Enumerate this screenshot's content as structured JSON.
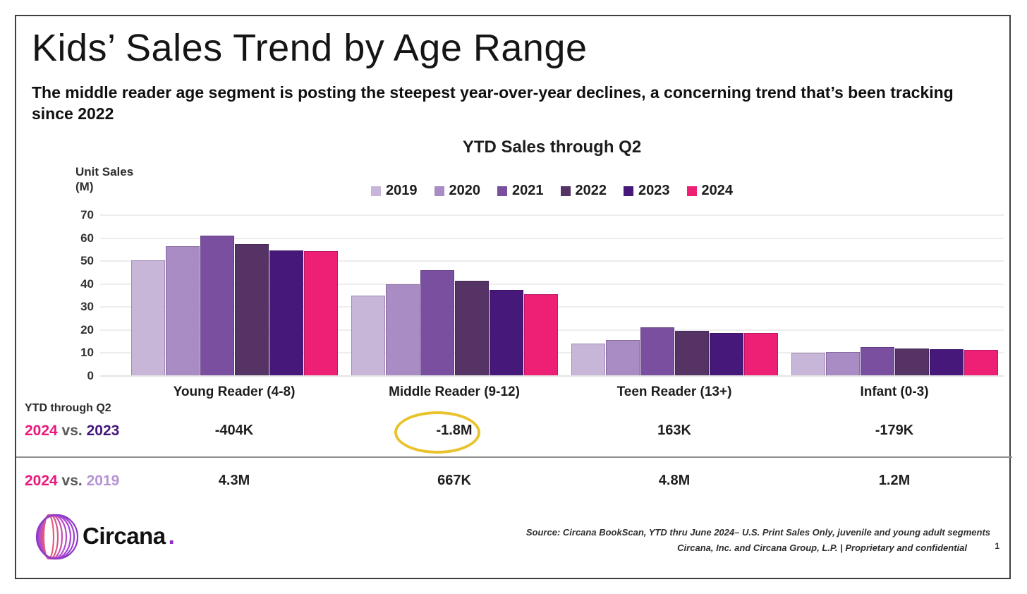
{
  "slide": {
    "title": "Kids’ Sales Trend by Age Range",
    "subtitle": "The middle reader age segment is posting the steepest year-over-year declines, a concerning trend that’s been tracking since 2022",
    "page_number": "1"
  },
  "chart_data": {
    "type": "bar",
    "title": "YTD Sales through Q2",
    "y_axis_label_line1": "Unit Sales",
    "y_axis_label_line2": "(M)",
    "ylim": [
      0,
      70
    ],
    "yticks": [
      70,
      60,
      50,
      40,
      30,
      20,
      10,
      0
    ],
    "grid": true,
    "legend_position": "top-center",
    "categories": [
      "Young Reader (4-8)",
      "Middle Reader (9-12)",
      "Teen Reader (13+)",
      "Infant (0-3)"
    ],
    "series": [
      {
        "name": "2019",
        "color": "#c8b6d8",
        "values": [
          49.9,
          34.6,
          13.7,
          9.9
        ]
      },
      {
        "name": "2020",
        "color": "#a98cc4",
        "values": [
          56.3,
          39.5,
          15.5,
          10.1
        ]
      },
      {
        "name": "2021",
        "color": "#7a4fa0",
        "values": [
          60.9,
          45.8,
          20.8,
          12.2
        ]
      },
      {
        "name": "2022",
        "color": "#553365",
        "values": [
          57.0,
          41.0,
          19.5,
          11.8
        ]
      },
      {
        "name": "2023",
        "color": "#45187a",
        "values": [
          54.5,
          37.1,
          18.3,
          11.3
        ]
      },
      {
        "name": "2024",
        "color": "#ee2076",
        "values": [
          54.1,
          35.3,
          18.5,
          11.1
        ]
      }
    ]
  },
  "comparison_table": {
    "row_header": "YTD through Q2",
    "accent_2024_color": "#e8197b",
    "rows": [
      {
        "year_a": "2024",
        "vs": "vs.",
        "year_b": "2023",
        "year_b_color": "#45187a",
        "values": [
          "-404K",
          "-1.8M",
          "163K",
          "-179K"
        ]
      },
      {
        "year_a": "2024",
        "vs": "vs.",
        "year_b": "2019",
        "year_b_color": "#b493d6",
        "values": [
          "4.3M",
          "667K",
          "4.8M",
          "1.2M"
        ]
      }
    ],
    "highlight": {
      "row": 0,
      "column": 1,
      "color": "#e9c32b",
      "value": "-1.8M"
    }
  },
  "footer": {
    "logo_text": "Circana",
    "logo_dot": ".",
    "source_line1": "Source: Circana BookScan, YTD thru June 2024– U.S. Print Sales Only, juvenile and young adult segments",
    "source_line2": "Circana, Inc. and Circana Group, L.P. |  Proprietary and confidential"
  }
}
